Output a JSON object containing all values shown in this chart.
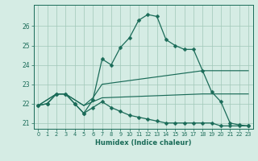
{
  "xlabel": "Humidex (Indice chaleur)",
  "bg_color": "#d5ece4",
  "grid_color": "#a0c8b8",
  "line_color": "#1a6b58",
  "xlim": [
    -0.5,
    23.5
  ],
  "ylim": [
    20.7,
    27.1
  ],
  "yticks": [
    21,
    22,
    23,
    24,
    25,
    26
  ],
  "xticks": [
    0,
    1,
    2,
    3,
    4,
    5,
    6,
    7,
    8,
    9,
    10,
    11,
    12,
    13,
    14,
    15,
    16,
    17,
    18,
    19,
    20,
    21,
    22,
    23
  ],
  "line1_x": [
    0,
    1,
    2,
    3,
    4,
    5,
    6,
    7,
    8,
    9,
    10,
    11,
    12,
    13,
    14,
    15,
    16,
    17,
    18,
    19,
    20,
    21,
    22,
    23
  ],
  "line1_y": [
    21.9,
    22.0,
    22.5,
    22.5,
    22.0,
    21.5,
    22.2,
    24.3,
    24.0,
    24.9,
    25.4,
    26.3,
    26.6,
    26.5,
    25.3,
    25.0,
    24.8,
    24.8,
    23.7,
    22.6,
    22.1,
    21.0,
    20.9,
    20.85
  ],
  "line2_x": [
    0,
    2,
    3,
    5,
    6,
    7,
    18,
    19,
    20,
    21,
    22,
    23
  ],
  "line2_y": [
    21.9,
    22.5,
    22.5,
    21.9,
    22.3,
    23.0,
    23.7,
    23.7,
    23.7,
    23.7,
    23.7,
    23.7
  ],
  "line3_x": [
    0,
    2,
    3,
    5,
    6,
    7,
    18,
    19,
    20,
    21,
    22,
    23
  ],
  "line3_y": [
    21.9,
    22.5,
    22.5,
    21.9,
    22.1,
    22.3,
    22.5,
    22.5,
    22.5,
    22.5,
    22.5,
    22.5
  ],
  "line4_x": [
    0,
    1,
    2,
    3,
    4,
    5,
    6,
    7,
    8,
    9,
    10,
    11,
    12,
    13,
    14,
    15,
    16,
    17,
    18,
    19,
    20,
    21,
    22,
    23
  ],
  "line4_y": [
    21.9,
    22.0,
    22.5,
    22.5,
    22.0,
    21.5,
    21.8,
    22.1,
    21.8,
    21.6,
    21.4,
    21.3,
    21.2,
    21.1,
    21.0,
    21.0,
    21.0,
    21.0,
    21.0,
    21.0,
    20.85,
    20.85,
    20.85,
    20.85
  ]
}
